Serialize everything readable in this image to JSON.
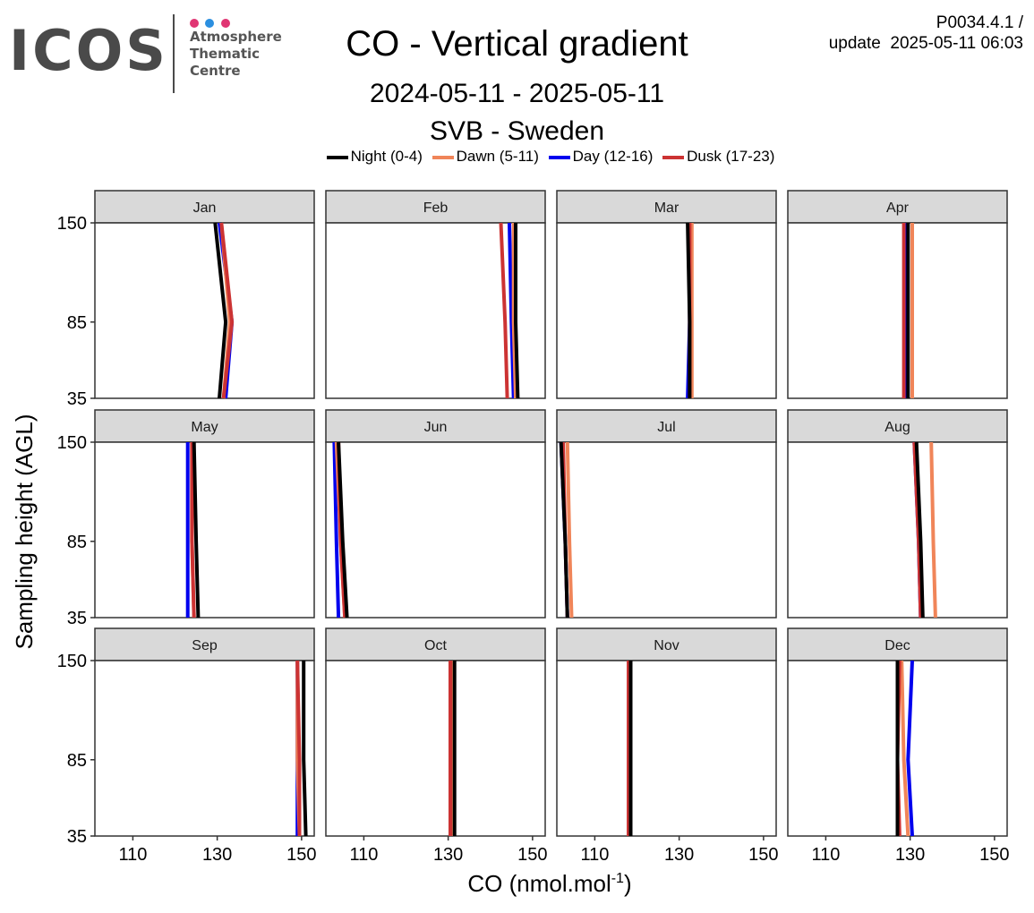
{
  "header": {
    "logo_text": "ICOS",
    "logo_sub": [
      "Atmosphere",
      "Thematic",
      "Centre"
    ],
    "logo_dot_colors": [
      "#e03573",
      "#2b8fe0",
      "#e03573"
    ],
    "title": "CO - Vertical gradient",
    "date_range": "2024-05-11 - 2025-05-11",
    "station": "SVB - Sweden",
    "version": "P0034.4.1 /",
    "update": "update  2025-05-11 06:03"
  },
  "chart_data": {
    "type": "line",
    "title": "CO - Vertical gradient",
    "subtitle": "2024-05-11 - 2025-05-11 / SVB - Sweden",
    "xlabel": "CO (nmol.mol",
    "xlabel_sup": "-1",
    "xlabel_close": ")",
    "ylabel": "Sampling height (AGL)",
    "xlim": [
      101,
      153
    ],
    "ylim": [
      35,
      150
    ],
    "x_ticks": [
      110,
      130,
      150
    ],
    "y_ticks": [
      35,
      85,
      150
    ],
    "legend_position": "top",
    "grid": false,
    "series": [
      {
        "name": "Night (0-4)",
        "color": "#000000"
      },
      {
        "name": "Dawn (5-11)",
        "color": "#f08559"
      },
      {
        "name": "Day (12-16)",
        "color": "#0000ee"
      },
      {
        "name": "Dusk (17-23)",
        "color": "#cc3333"
      }
    ],
    "heights": [
      35,
      85,
      150
    ],
    "panels": [
      {
        "month": "Jan",
        "values": [
          [
            130.5,
            132.0,
            129.5
          ],
          [
            131.5,
            133.0,
            131.0
          ],
          [
            132.0,
            133.5,
            130.5
          ],
          [
            131.5,
            133.5,
            131.0
          ]
        ]
      },
      {
        "month": "Feb",
        "values": [
          [
            146.5,
            146.0,
            146.0
          ],
          [
            146.0,
            145.5,
            145.5
          ],
          [
            145.5,
            145.0,
            144.5
          ],
          [
            144.0,
            143.5,
            142.5
          ]
        ]
      },
      {
        "month": "Mar",
        "values": [
          [
            132.5,
            132.5,
            132.0
          ],
          [
            133.0,
            133.0,
            133.0
          ],
          [
            132.0,
            132.5,
            132.5
          ],
          [
            132.5,
            132.5,
            132.5
          ]
        ]
      },
      {
        "month": "Apr",
        "values": [
          [
            129.5,
            129.5,
            129.5
          ],
          [
            130.5,
            130.5,
            130.5
          ],
          [
            129.0,
            129.0,
            129.0
          ],
          [
            128.5,
            128.5,
            128.5
          ]
        ]
      },
      {
        "month": "May",
        "values": [
          [
            125.5,
            125.0,
            124.5
          ],
          [
            124.5,
            124.0,
            124.0
          ],
          [
            123.0,
            123.0,
            123.0
          ],
          [
            124.5,
            124.0,
            124.0
          ]
        ]
      },
      {
        "month": "Jun",
        "values": [
          [
            106.0,
            105.0,
            104.0
          ],
          [
            105.5,
            104.5,
            103.5
          ],
          [
            104.0,
            103.5,
            103.0
          ],
          [
            105.5,
            104.5,
            104.0
          ]
        ]
      },
      {
        "month": "Jul",
        "values": [
          [
            103.5,
            103.0,
            102.0
          ],
          [
            104.5,
            104.0,
            103.5
          ],
          [
            103.5,
            103.0,
            102.0
          ],
          [
            103.5,
            103.0,
            102.5
          ]
        ]
      },
      {
        "month": "Aug",
        "values": [
          [
            133.0,
            132.5,
            131.5
          ],
          [
            136.0,
            135.5,
            135.0
          ],
          [
            132.5,
            132.0,
            131.0
          ],
          [
            132.5,
            132.0,
            131.0
          ]
        ]
      },
      {
        "month": "Sep",
        "values": [
          [
            151.0,
            150.5,
            150.5
          ],
          [
            149.5,
            149.0,
            149.0
          ],
          [
            149.0,
            149.0,
            149.0
          ],
          [
            149.5,
            149.5,
            149.0
          ]
        ]
      },
      {
        "month": "Oct",
        "values": [
          [
            131.5,
            131.5,
            131.5
          ],
          [
            131.0,
            131.0,
            131.0
          ],
          [
            131.0,
            131.0,
            131.0
          ],
          [
            130.5,
            130.5,
            130.5
          ]
        ]
      },
      {
        "month": "Nov",
        "values": [
          [
            118.5,
            118.5,
            118.5
          ],
          [
            118.0,
            118.0,
            118.0
          ],
          [
            118.0,
            118.0,
            118.0
          ],
          [
            118.0,
            118.0,
            118.0
          ]
        ]
      },
      {
        "month": "Dec",
        "values": [
          [
            127.0,
            127.0,
            127.0
          ],
          [
            129.5,
            128.5,
            128.0
          ],
          [
            130.5,
            129.5,
            130.5
          ],
          [
            127.5,
            127.0,
            127.5
          ]
        ]
      }
    ]
  }
}
